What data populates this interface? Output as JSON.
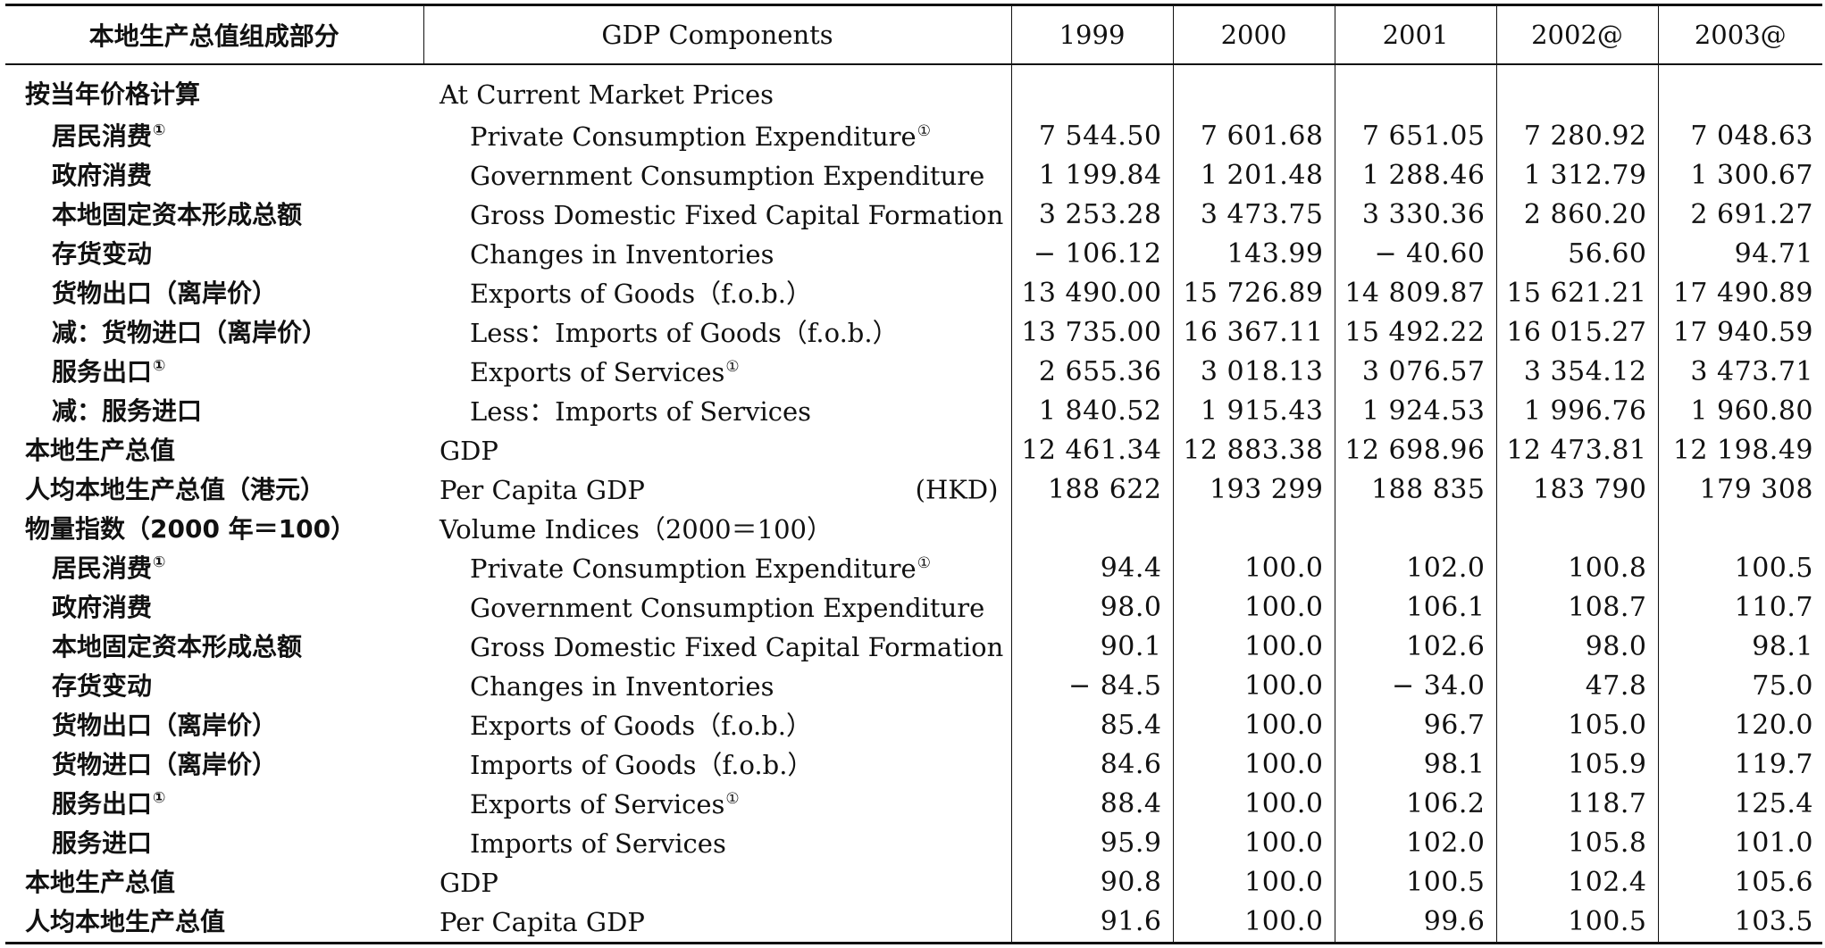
{
  "table": {
    "headers": {
      "zh": "本地生产总值组成部分",
      "en": "GDP Components",
      "years": [
        "1999",
        "2000",
        "2001",
        "2002@",
        "2003@"
      ]
    },
    "rows": [
      {
        "zh": "按当年价格计算",
        "en": "At Current Market Prices",
        "indent": false,
        "fn": false,
        "unit": "",
        "values": [
          "",
          "",
          "",
          "",
          ""
        ]
      },
      {
        "zh": "居民消费",
        "en": "Private Consumption Expenditure",
        "indent": true,
        "fn": true,
        "unit": "",
        "values": [
          "7 544.50",
          "7 601.68",
          "7 651.05",
          "7 280.92",
          "7 048.63"
        ]
      },
      {
        "zh": "政府消费",
        "en": "Government Consumption Expenditure",
        "indent": true,
        "fn": false,
        "unit": "",
        "values": [
          "1 199.84",
          "1 201.48",
          "1 288.46",
          "1 312.79",
          "1 300.67"
        ]
      },
      {
        "zh": "本地固定资本形成总额",
        "en": "Gross Domestic Fixed Capital Formation",
        "indent": true,
        "fn": false,
        "unit": "",
        "values": [
          "3 253.28",
          "3 473.75",
          "3 330.36",
          "2 860.20",
          "2 691.27"
        ]
      },
      {
        "zh": "存货变动",
        "en": "Changes in Inventories",
        "indent": true,
        "fn": false,
        "unit": "",
        "values": [
          "− 106.12",
          "143.99",
          "− 40.60",
          "56.60",
          "94.71"
        ]
      },
      {
        "zh": "货物出口（离岸价）",
        "en": "Exports of Goods（f.o.b.）",
        "indent": true,
        "fn": false,
        "unit": "",
        "values": [
          "13 490.00",
          "15 726.89",
          "14 809.87",
          "15 621.21",
          "17 490.89"
        ]
      },
      {
        "zh": "减：货物进口（离岸价）",
        "en": "Less：Imports of Goods（f.o.b.）",
        "indent": true,
        "fn": false,
        "unit": "",
        "values": [
          "13 735.00",
          "16 367.11",
          "15 492.22",
          "16 015.27",
          "17 940.59"
        ]
      },
      {
        "zh": "服务出口",
        "en": "Exports of Services",
        "indent": true,
        "fn": true,
        "unit": "",
        "values": [
          "2 655.36",
          "3 018.13",
          "3 076.57",
          "3 354.12",
          "3 473.71"
        ]
      },
      {
        "zh": "减：服务进口",
        "en": "Less：Imports of Services",
        "indent": true,
        "fn": false,
        "unit": "",
        "values": [
          "1 840.52",
          "1 915.43",
          "1 924.53",
          "1 996.76",
          "1 960.80"
        ]
      },
      {
        "zh": "本地生产总值",
        "en": "GDP",
        "indent": false,
        "fn": false,
        "unit": "",
        "values": [
          "12 461.34",
          "12 883.38",
          "12 698.96",
          "12 473.81",
          "12 198.49"
        ]
      },
      {
        "zh": "人均本地生产总值（港元）",
        "en": "Per Capita GDP",
        "indent": false,
        "fn": false,
        "unit": "(HKD)",
        "values": [
          "188 622",
          "193 299",
          "188 835",
          "183 790",
          "179 308"
        ]
      },
      {
        "zh": "物量指数（2000 年＝100）",
        "en": "Volume Indices（2000＝100）",
        "indent": false,
        "fn": false,
        "unit": "",
        "values": [
          "",
          "",
          "",
          "",
          ""
        ]
      },
      {
        "zh": "居民消费",
        "en": "Private Consumption Expenditure",
        "indent": true,
        "fn": true,
        "unit": "",
        "values": [
          "94.4",
          "100.0",
          "102.0",
          "100.8",
          "100.5"
        ]
      },
      {
        "zh": "政府消费",
        "en": "Government Consumption Expenditure",
        "indent": true,
        "fn": false,
        "unit": "",
        "values": [
          "98.0",
          "100.0",
          "106.1",
          "108.7",
          "110.7"
        ]
      },
      {
        "zh": "本地固定资本形成总额",
        "en": "Gross Domestic Fixed Capital Formation",
        "indent": true,
        "fn": false,
        "unit": "",
        "values": [
          "90.1",
          "100.0",
          "102.6",
          "98.0",
          "98.1"
        ]
      },
      {
        "zh": "存货变动",
        "en": "Changes in Inventories",
        "indent": true,
        "fn": false,
        "unit": "",
        "values": [
          "− 84.5",
          "100.0",
          "− 34.0",
          "47.8",
          "75.0"
        ]
      },
      {
        "zh": "货物出口（离岸价）",
        "en": "Exports of Goods（f.o.b.）",
        "indent": true,
        "fn": false,
        "unit": "",
        "values": [
          "85.4",
          "100.0",
          "96.7",
          "105.0",
          "120.0"
        ]
      },
      {
        "zh": "货物进口（离岸价）",
        "en": "Imports of Goods（f.o.b.）",
        "indent": true,
        "fn": false,
        "unit": "",
        "values": [
          "84.6",
          "100.0",
          "98.1",
          "105.9",
          "119.7"
        ]
      },
      {
        "zh": "服务出口",
        "en": "Exports of Services",
        "indent": true,
        "fn": true,
        "unit": "",
        "values": [
          "88.4",
          "100.0",
          "106.2",
          "118.7",
          "125.4"
        ]
      },
      {
        "zh": "服务进口",
        "en": "Imports of Services",
        "indent": true,
        "fn": false,
        "unit": "",
        "values": [
          "95.9",
          "100.0",
          "102.0",
          "105.8",
          "101.0"
        ]
      },
      {
        "zh": "本地生产总值",
        "en": "GDP",
        "indent": false,
        "fn": false,
        "unit": "",
        "values": [
          "90.8",
          "100.0",
          "100.5",
          "102.4",
          "105.6"
        ]
      },
      {
        "zh": "人均本地生产总值",
        "en": "Per Capita GDP",
        "indent": false,
        "fn": false,
        "unit": "",
        "values": [
          "91.6",
          "100.0",
          "99.6",
          "100.5",
          "103.5"
        ]
      }
    ],
    "footnote_mark": "①"
  }
}
